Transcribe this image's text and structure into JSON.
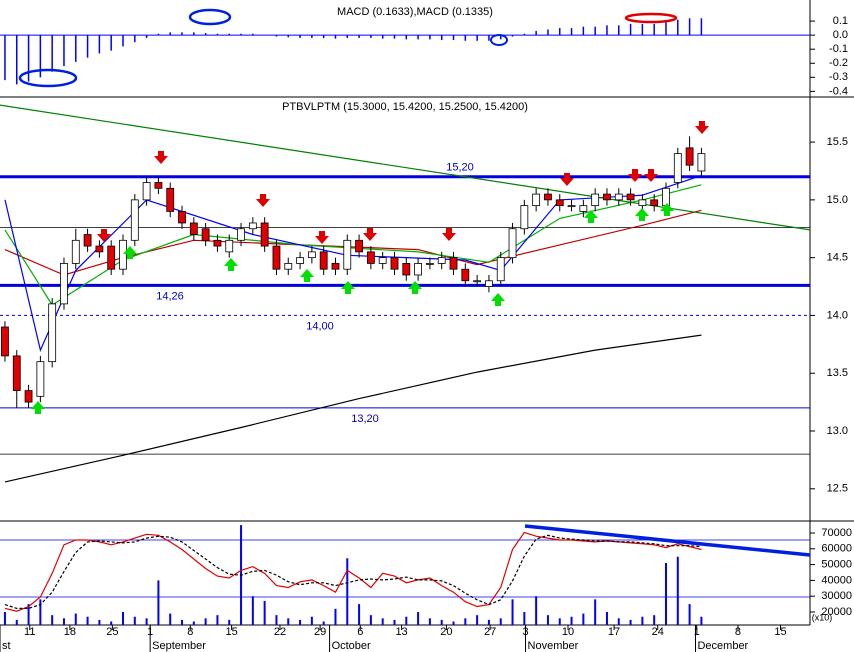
{
  "chart_data": [
    {
      "type": "bar",
      "title": "MACD (0.1633),MACD (0.1335)",
      "color": "#0000ff",
      "values": [
        -0.32,
        -0.35,
        -0.33,
        -0.3,
        -0.26,
        -0.22,
        -0.19,
        -0.16,
        -0.13,
        -0.11,
        -0.08,
        -0.05,
        -0.02,
        0.01,
        0.02,
        0.02,
        0.02,
        0.015,
        0.01,
        0.01,
        0.01,
        0.01,
        0.0,
        -0.01,
        -0.015,
        -0.02,
        -0.02,
        -0.02,
        -0.025,
        -0.02,
        -0.02,
        -0.02,
        -0.025,
        -0.025,
        -0.03,
        -0.03,
        -0.03,
        -0.035,
        -0.035,
        -0.04,
        -0.04,
        -0.04,
        -0.03,
        -0.01,
        0.01,
        0.03,
        0.04,
        0.05,
        0.05,
        0.06,
        0.06,
        0.07,
        0.07,
        0.08,
        0.08,
        0.08,
        0.09,
        0.11,
        0.12,
        0.12
      ],
      "ylim": [
        -0.44,
        0.25
      ],
      "yticks": [
        0.1,
        {
          "value": 0,
          "label": "0.0"
        },
        -0.1,
        -0.2,
        -0.3,
        -0.4
      ]
    },
    {
      "type": "candlestick",
      "title": "PTBVLPTM (15.3000, 15.4200, 15.2500, 15.4200)",
      "xlim": [
        -0.42,
        68.2
      ],
      "open": [
        13.9,
        13.65,
        13.35,
        13.3,
        13.6,
        14.1,
        14.45,
        14.7,
        14.6,
        14.6,
        14.4,
        14.65,
        15.0,
        15.15,
        15.1,
        14.9,
        14.8,
        14.75,
        14.65,
        14.55,
        14.65,
        14.75,
        14.8,
        14.6,
        14.4,
        14.45,
        14.5,
        14.55,
        14.45,
        14.4,
        14.65,
        14.55,
        14.45,
        14.5,
        14.45,
        14.35,
        14.45,
        14.45,
        14.5,
        14.4,
        14.3,
        14.25,
        14.3,
        14.5,
        14.75,
        14.95,
        15.05,
        15.0,
        14.95,
        14.9,
        14.95,
        15.05,
        15.0,
        15.05,
        14.95,
        15.0,
        14.95,
        15.15,
        15.45,
        15.25
      ],
      "high": [
        13.95,
        13.7,
        13.4,
        13.65,
        14.15,
        14.5,
        14.75,
        14.75,
        14.65,
        14.65,
        14.7,
        15.05,
        15.2,
        15.2,
        15.15,
        14.95,
        14.85,
        14.8,
        14.7,
        14.7,
        14.8,
        14.85,
        14.85,
        14.65,
        14.5,
        14.55,
        14.6,
        14.6,
        14.5,
        14.7,
        14.7,
        14.6,
        14.55,
        14.55,
        14.5,
        14.5,
        14.5,
        14.55,
        14.55,
        14.45,
        14.35,
        14.35,
        14.55,
        14.8,
        15.0,
        15.1,
        15.1,
        15.05,
        15.0,
        15.0,
        15.1,
        15.1,
        15.1,
        15.1,
        15.05,
        15.05,
        15.15,
        15.45,
        15.55,
        15.45
      ],
      "low": [
        13.6,
        13.2,
        13.2,
        13.25,
        13.55,
        14.05,
        14.4,
        14.55,
        14.5,
        14.35,
        14.35,
        14.6,
        14.95,
        15.05,
        14.85,
        14.75,
        14.65,
        14.6,
        14.55,
        14.5,
        14.6,
        14.7,
        14.55,
        14.35,
        14.35,
        14.4,
        14.45,
        14.35,
        14.35,
        14.35,
        14.5,
        14.4,
        14.4,
        14.35,
        14.3,
        14.3,
        14.4,
        14.4,
        14.35,
        14.25,
        14.25,
        14.2,
        14.25,
        14.45,
        14.7,
        14.9,
        14.95,
        14.9,
        14.9,
        14.85,
        14.9,
        14.95,
        14.95,
        14.95,
        14.9,
        14.9,
        14.9,
        15.1,
        15.25,
        15.2
      ],
      "close": [
        13.65,
        13.35,
        13.25,
        13.6,
        14.1,
        14.45,
        14.65,
        14.6,
        14.55,
        14.4,
        14.65,
        15.0,
        15.15,
        15.1,
        14.9,
        14.8,
        14.7,
        14.65,
        14.6,
        14.65,
        14.75,
        14.8,
        14.6,
        14.4,
        14.45,
        14.5,
        14.55,
        14.4,
        14.4,
        14.65,
        14.55,
        14.45,
        14.5,
        14.4,
        14.35,
        14.45,
        14.45,
        14.5,
        14.4,
        14.3,
        14.3,
        14.3,
        14.5,
        14.75,
        14.95,
        15.05,
        15.0,
        14.95,
        14.95,
        14.95,
        15.05,
        15.0,
        15.05,
        15.0,
        15.0,
        14.95,
        15.1,
        15.4,
        15.3,
        15.4
      ],
      "series": [
        {
          "color": "#000000",
          "x": [
            0,
            10,
            20,
            30,
            40,
            50,
            59
          ],
          "values": [
            12.56,
            12.79,
            13.03,
            13.28,
            13.51,
            13.7,
            13.83
          ]
        },
        {
          "color": "#c00000",
          "x": [
            0,
            5,
            10,
            16,
            25,
            35,
            40,
            47,
            54,
            59
          ],
          "values": [
            14.57,
            14.35,
            14.5,
            14.65,
            14.61,
            14.57,
            14.44,
            14.61,
            14.78,
            14.91
          ]
        },
        {
          "color": "#00b000",
          "x": [
            0,
            4,
            10,
            16,
            25,
            35,
            41,
            47,
            54,
            59
          ],
          "values": [
            14.74,
            14.09,
            14.48,
            14.7,
            14.61,
            14.55,
            14.46,
            14.84,
            15.0,
            15.13
          ]
        },
        {
          "color": "#0000ff",
          "x": [
            0,
            3,
            6,
            12,
            21,
            29,
            39,
            42,
            47,
            54,
            59
          ],
          "values": [
            15.0,
            13.7,
            14.39,
            15.0,
            14.7,
            14.52,
            14.48,
            14.39,
            15.0,
            15.04,
            15.21
          ]
        },
        {
          "color": "#008000",
          "x": [
            -0.42,
            68.2
          ],
          "values": [
            15.82,
            14.74
          ]
        }
      ],
      "levels": [
        {
          "value": 15.2,
          "label": "15,20"
        },
        {
          "value": 14.26,
          "label": "14,26"
        },
        {
          "value": 14.0,
          "label": "14,00"
        },
        {
          "value": 13.2,
          "label": "13,20"
        }
      ],
      "lines": [
        14.76,
        12.8
      ],
      "ylim": [
        12.23,
        15.89
      ],
      "yticks": [
        15.5,
        {
          "value": 15,
          "label": "15.0"
        },
        14.5,
        {
          "value": 14,
          "label": "14.0"
        },
        13.5,
        {
          "value": 13,
          "label": "13.0"
        },
        12.5
      ]
    },
    {
      "type": "volume",
      "color": "#0000ff",
      "values": [
        20000,
        15000,
        25000,
        28000,
        18000,
        16000,
        19000,
        17000,
        15000,
        14000,
        20000,
        17000,
        16000,
        40000,
        19000,
        15000,
        14000,
        16000,
        18000,
        15000,
        75000,
        30000,
        27000,
        18000,
        16000,
        15000,
        17000,
        14000,
        22000,
        54000,
        25000,
        18000,
        16000,
        15000,
        17000,
        20000,
        16000,
        15000,
        14000,
        16000,
        18000,
        15000,
        16000,
        28000,
        20000,
        30000,
        18000,
        16000,
        17000,
        19000,
        28000,
        20000,
        16000,
        15000,
        17000,
        18000,
        51000,
        55000,
        25000,
        17000
      ],
      "ylim": [
        11770,
        76960
      ],
      "yticks": [
        70000,
        60000,
        50000,
        40000,
        30000,
        20000
      ],
      "unit_label": "(x10)",
      "series": [
        {
          "color": "#e00000",
          "axis": "y2",
          "values": [
            8,
            5,
            10,
            20,
            45,
            75,
            80,
            80,
            78,
            75,
            78,
            82,
            86,
            85,
            78,
            70,
            60,
            50,
            42,
            40,
            48,
            52,
            45,
            32,
            30,
            36,
            38,
            32,
            25,
            48,
            40,
            30,
            45,
            42,
            35,
            38,
            40,
            32,
            25,
            15,
            10,
            12,
            30,
            70,
            88,
            84,
            82,
            80,
            80,
            79,
            78,
            79,
            78,
            77,
            76,
            75,
            72,
            76,
            73,
            70
          ]
        },
        {
          "color": "#000000",
          "axis": "y2",
          "dashed": true,
          "values": [
            12,
            8,
            8,
            12,
            25,
            47,
            67,
            78,
            79,
            78,
            77,
            78,
            82,
            84,
            83,
            78,
            69,
            60,
            51,
            44,
            43,
            47,
            48,
            43,
            36,
            33,
            35,
            35,
            32,
            35,
            38,
            39,
            38,
            39,
            41,
            38,
            38,
            37,
            32,
            24,
            17,
            12,
            17,
            37,
            63,
            81,
            85,
            82,
            81,
            80,
            79,
            79,
            78,
            78,
            77,
            76,
            74,
            74,
            74,
            73
          ]
        }
      ],
      "y2lim": [
        -9.5,
        99
      ],
      "y2levels": [
        80,
        20
      ],
      "xticks": [
        {
          "value": 2.1,
          "label": "11"
        },
        {
          "value": 5.5,
          "label": "18"
        },
        {
          "value": 9.1,
          "label": "25"
        },
        {
          "value": 12.3,
          "label": "1"
        },
        {
          "value": 15.7,
          "label": "8"
        },
        {
          "value": 19.2,
          "label": "15"
        },
        {
          "value": 23.3,
          "label": "22"
        },
        {
          "value": 26.7,
          "label": "29"
        },
        {
          "value": 30.1,
          "label": "6"
        },
        {
          "value": 33.6,
          "label": "13"
        },
        {
          "value": 37.4,
          "label": "20"
        },
        {
          "value": 41.1,
          "label": "27"
        },
        {
          "value": 44.1,
          "label": "3"
        },
        {
          "value": 47.7,
          "label": "10"
        },
        {
          "value": 51.6,
          "label": "17"
        },
        {
          "value": 55.3,
          "label": "24"
        },
        {
          "value": 58.6,
          "label": "1"
        },
        {
          "value": 62.1,
          "label": "8"
        },
        {
          "value": 65.7,
          "label": "15"
        }
      ],
      "months": [
        {
          "value": -0.42,
          "label": "st"
        },
        {
          "value": 12.3,
          "label": "September"
        },
        {
          "value": 27.5,
          "label": "October"
        },
        {
          "value": 44.1,
          "label": "November"
        },
        {
          "value": 58.5,
          "label": "December"
        }
      ]
    }
  ]
}
